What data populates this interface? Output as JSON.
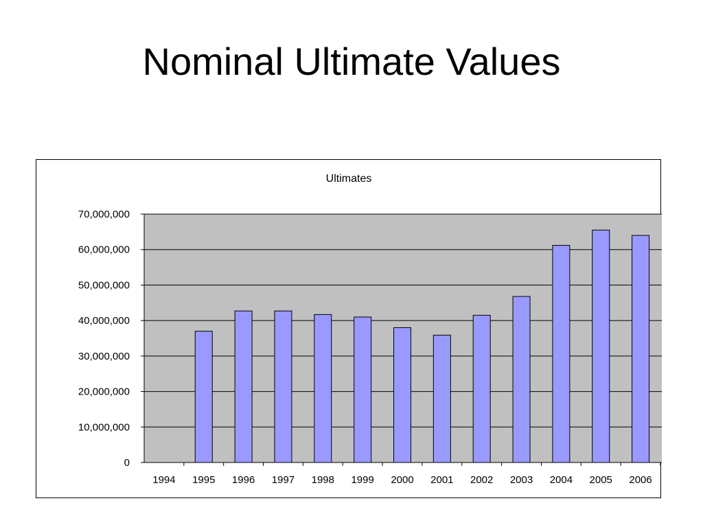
{
  "slide": {
    "title": "Nominal Ultimate Values"
  },
  "colors": {
    "plot_background": "#c0c0c0",
    "bar_fill": "#9999ff",
    "bar_stroke": "#000000",
    "gridline": "#000000"
  },
  "chart_data": {
    "type": "bar",
    "title": "Ultimates",
    "xlabel": "",
    "ylabel": "",
    "categories": [
      "1994",
      "1995",
      "1996",
      "1997",
      "1998",
      "1999",
      "2000",
      "2001",
      "2002",
      "2003",
      "2004",
      "2005",
      "2006"
    ],
    "values": [
      null,
      37000000,
      42700000,
      42700000,
      41700000,
      41000000,
      38000000,
      35900000,
      41500000,
      46800000,
      61200000,
      65500000,
      64000000
    ],
    "ylim": [
      0,
      70000000
    ],
    "yticks": [
      0,
      10000000,
      20000000,
      30000000,
      40000000,
      50000000,
      60000000,
      70000000
    ],
    "ytick_labels": [
      "0",
      "10,000,000",
      "20,000,000",
      "30,000,000",
      "40,000,000",
      "50,000,000",
      "60,000,000",
      "70,000,000"
    ],
    "grid": true,
    "legend": "none"
  }
}
